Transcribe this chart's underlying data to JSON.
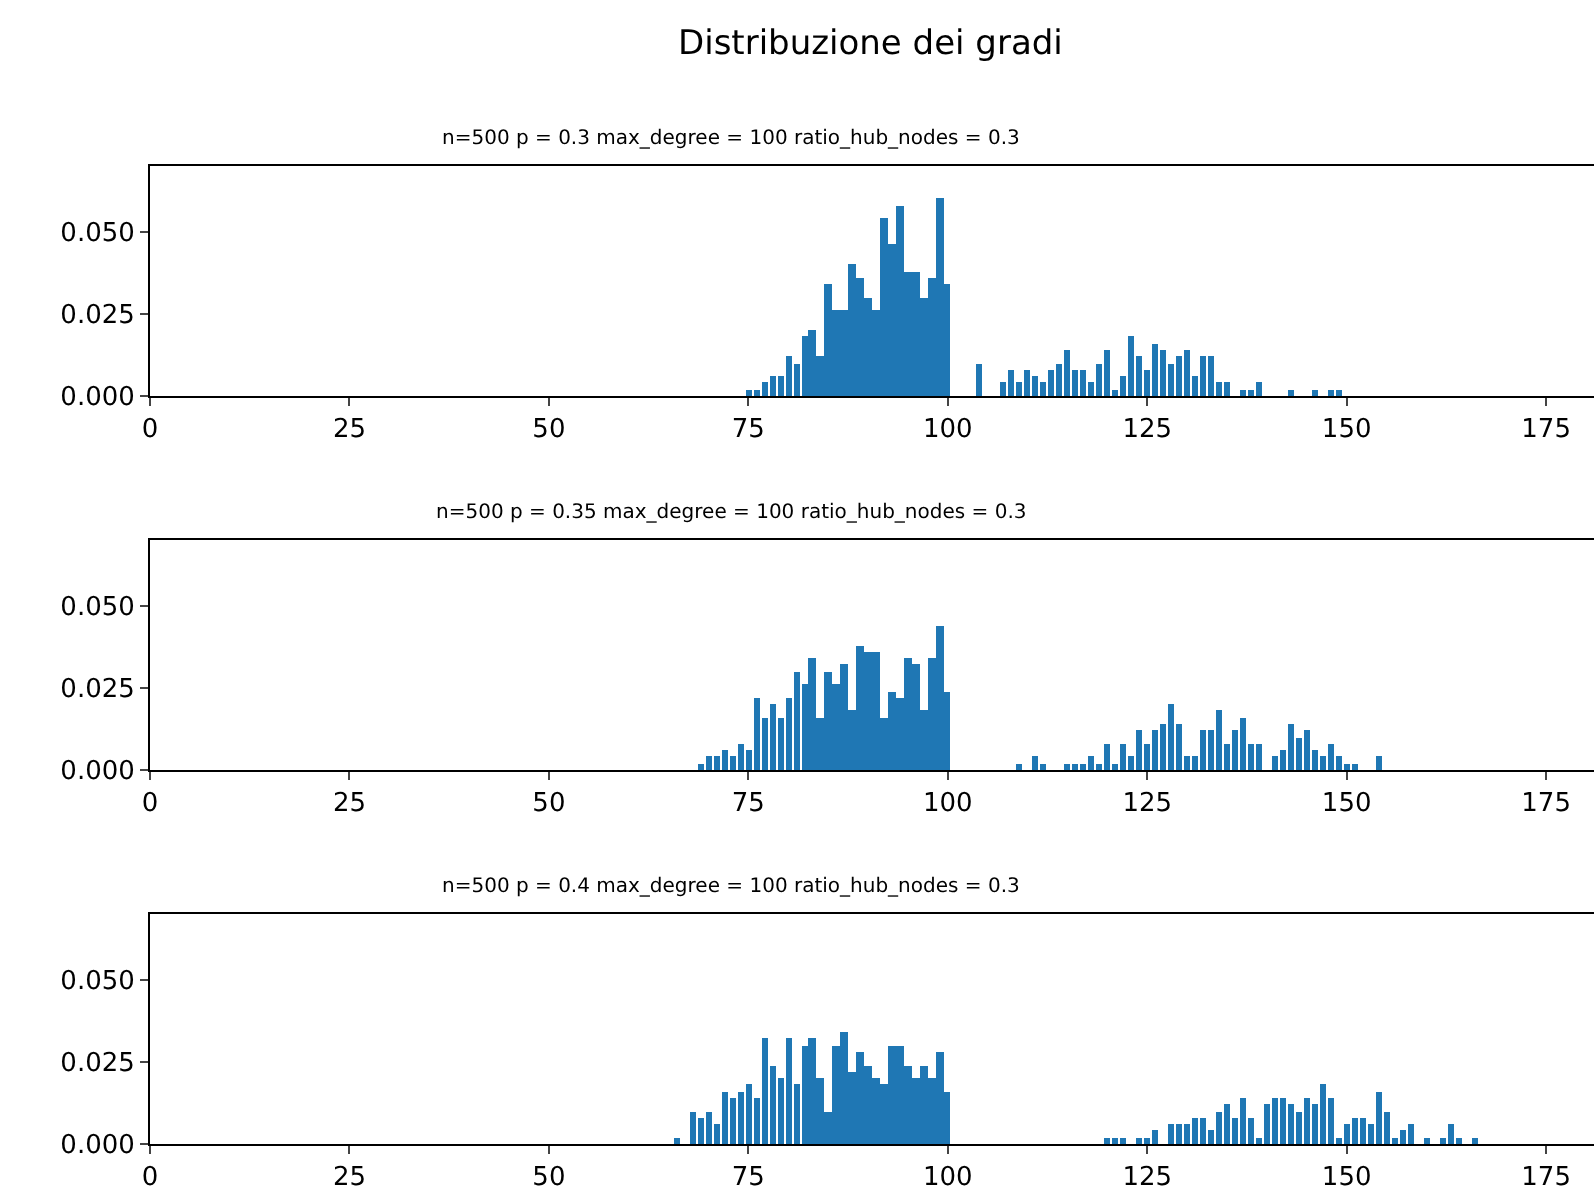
{
  "chart_data": [
    {
      "type": "bar",
      "title": "Distribuzione dei gradi",
      "subtitle": "n=500 p = 0.3 max_degree = 100 ratio_hub_nodes = 0.3",
      "x": [
        75,
        76,
        77,
        78,
        79,
        80,
        81,
        82,
        83,
        84,
        85,
        86,
        87,
        88,
        89,
        90,
        91,
        92,
        93,
        94,
        95,
        96,
        97,
        98,
        99,
        100,
        104,
        107,
        108,
        109,
        110,
        111,
        112,
        113,
        114,
        115,
        116,
        117,
        118,
        119,
        120,
        121,
        122,
        123,
        124,
        125,
        126,
        127,
        128,
        129,
        130,
        131,
        132,
        133,
        134,
        135,
        137,
        138,
        139,
        143,
        146,
        148,
        149
      ],
      "values": [
        0.002,
        0.002,
        0.004,
        0.006,
        0.006,
        0.012,
        0.01,
        0.018,
        0.02,
        0.012,
        0.034,
        0.026,
        0.026,
        0.04,
        0.036,
        0.03,
        0.026,
        0.054,
        0.046,
        0.058,
        0.038,
        0.038,
        0.03,
        0.036,
        0.06,
        0.034,
        0.01,
        0.004,
        0.008,
        0.004,
        0.008,
        0.006,
        0.004,
        0.008,
        0.01,
        0.014,
        0.008,
        0.008,
        0.004,
        0.01,
        0.014,
        0.002,
        0.006,
        0.018,
        0.012,
        0.008,
        0.016,
        0.014,
        0.01,
        0.012,
        0.014,
        0.006,
        0.012,
        0.012,
        0.004,
        0.004,
        0.002,
        0.002,
        0.004,
        0.002,
        0.002,
        0.002,
        0.002
      ],
      "color": "#1f77b4",
      "xlim": [
        0,
        181
      ],
      "xticks": [
        0,
        25,
        50,
        75,
        100,
        125,
        150,
        175
      ],
      "ylim": [
        0,
        0.07
      ],
      "yticks": [
        {
          "value": 0,
          "label": "0.000"
        },
        {
          "value": 0.025,
          "label": "0.025"
        },
        {
          "value": 0.05,
          "label": "0.050"
        }
      ]
    },
    {
      "type": "bar",
      "subtitle": "n=500 p = 0.35 max_degree = 100 ratio_hub_nodes = 0.3",
      "x": [
        69,
        70,
        71,
        72,
        73,
        74,
        75,
        76,
        77,
        78,
        79,
        80,
        81,
        82,
        83,
        84,
        85,
        86,
        87,
        88,
        89,
        90,
        91,
        92,
        93,
        94,
        95,
        96,
        97,
        98,
        99,
        100,
        109,
        111,
        112,
        115,
        116,
        117,
        118,
        119,
        120,
        121,
        122,
        123,
        124,
        125,
        126,
        127,
        128,
        129,
        130,
        131,
        132,
        133,
        134,
        135,
        136,
        137,
        138,
        139,
        141,
        142,
        143,
        144,
        145,
        146,
        147,
        148,
        149,
        150,
        151,
        154
      ],
      "values": [
        0.002,
        0.004,
        0.004,
        0.006,
        0.004,
        0.008,
        0.006,
        0.022,
        0.016,
        0.02,
        0.016,
        0.022,
        0.03,
        0.026,
        0.034,
        0.016,
        0.03,
        0.026,
        0.032,
        0.018,
        0.038,
        0.036,
        0.036,
        0.016,
        0.024,
        0.022,
        0.034,
        0.032,
        0.018,
        0.034,
        0.044,
        0.024,
        0.002,
        0.004,
        0.002,
        0.002,
        0.002,
        0.002,
        0.004,
        0.002,
        0.008,
        0.002,
        0.008,
        0.004,
        0.012,
        0.008,
        0.012,
        0.014,
        0.02,
        0.014,
        0.004,
        0.004,
        0.012,
        0.012,
        0.018,
        0.008,
        0.012,
        0.016,
        0.008,
        0.008,
        0.004,
        0.006,
        0.014,
        0.01,
        0.012,
        0.006,
        0.004,
        0.008,
        0.004,
        0.002,
        0.002,
        0.004
      ],
      "color": "#1f77b4",
      "xlim": [
        0,
        181
      ],
      "xticks": [
        0,
        25,
        50,
        75,
        100,
        125,
        150,
        175
      ],
      "ylim": [
        0,
        0.07
      ],
      "yticks": [
        {
          "value": 0,
          "label": "0.000"
        },
        {
          "value": 0.025,
          "label": "0.025"
        },
        {
          "value": 0.05,
          "label": "0.050"
        }
      ]
    },
    {
      "type": "bar",
      "subtitle": "n=500 p = 0.4 max_degree = 100 ratio_hub_nodes = 0.3",
      "x": [
        66,
        68,
        69,
        70,
        71,
        72,
        73,
        74,
        75,
        76,
        77,
        78,
        79,
        80,
        81,
        82,
        83,
        84,
        85,
        86,
        87,
        88,
        89,
        90,
        91,
        92,
        93,
        94,
        95,
        96,
        97,
        98,
        99,
        100,
        120,
        121,
        122,
        124,
        125,
        126,
        128,
        129,
        130,
        131,
        132,
        133,
        134,
        135,
        136,
        137,
        138,
        139,
        140,
        141,
        142,
        143,
        144,
        145,
        146,
        147,
        148,
        149,
        150,
        151,
        152,
        153,
        154,
        155,
        156,
        157,
        158,
        160,
        162,
        163,
        164,
        166
      ],
      "values": [
        0.002,
        0.01,
        0.008,
        0.01,
        0.006,
        0.016,
        0.014,
        0.016,
        0.018,
        0.014,
        0.032,
        0.024,
        0.02,
        0.032,
        0.018,
        0.03,
        0.032,
        0.02,
        0.01,
        0.03,
        0.034,
        0.022,
        0.028,
        0.024,
        0.02,
        0.018,
        0.03,
        0.03,
        0.024,
        0.02,
        0.024,
        0.02,
        0.028,
        0.016,
        0.002,
        0.002,
        0.002,
        0.002,
        0.002,
        0.004,
        0.006,
        0.006,
        0.006,
        0.008,
        0.008,
        0.004,
        0.01,
        0.012,
        0.008,
        0.014,
        0.008,
        0.002,
        0.012,
        0.014,
        0.014,
        0.012,
        0.01,
        0.014,
        0.012,
        0.018,
        0.014,
        0.002,
        0.006,
        0.008,
        0.008,
        0.006,
        0.016,
        0.01,
        0.002,
        0.004,
        0.006,
        0.002,
        0.002,
        0.006,
        0.002,
        0.002
      ],
      "color": "#1f77b4",
      "xlim": [
        0,
        181
      ],
      "xticks": [
        0,
        25,
        50,
        75,
        100,
        125,
        150,
        175
      ],
      "ylim": [
        0,
        0.07
      ],
      "yticks": [
        {
          "value": 0,
          "label": "0.000"
        },
        {
          "value": 0.025,
          "label": "0.025"
        },
        {
          "value": 0.05,
          "label": "0.050"
        }
      ]
    }
  ]
}
